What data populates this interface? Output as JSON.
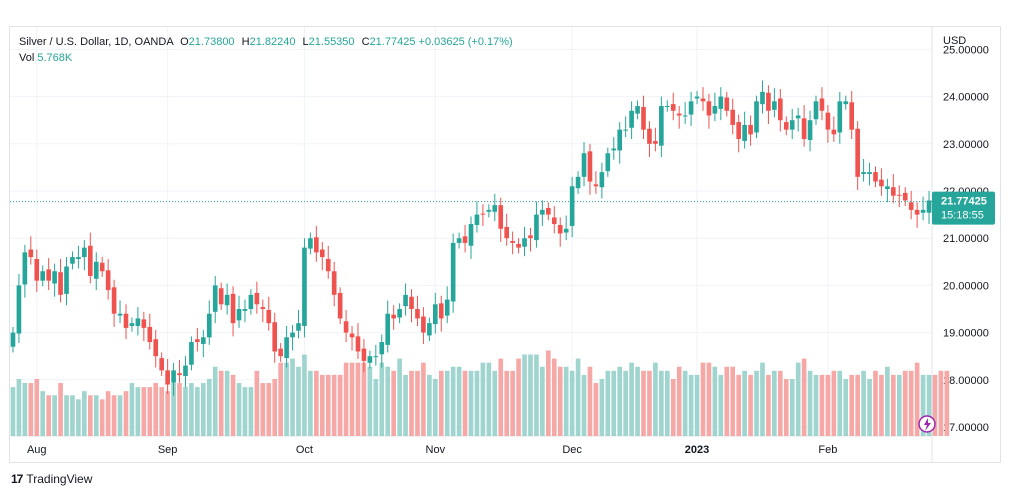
{
  "header": {
    "symbol": "Silver / U.S. Dollar, 1D, OANDA",
    "open_label": "O",
    "open": "21.73800",
    "high_label": "H",
    "high": "21.82240",
    "low_label": "L",
    "low": "21.55350",
    "close_label": "C",
    "close": "21.77425",
    "change": "+0.03625 (+0.17%)",
    "vol_label": "Vol",
    "vol": "5.768K"
  },
  "axis": {
    "currency": "USD",
    "last_price": "21.77425",
    "countdown": "15:18:55"
  },
  "brand": {
    "name": "TradingView",
    "logo_text": "17"
  },
  "colors": {
    "up": "#26a69a",
    "down": "#ef5350",
    "up_vol": "#9fd4cf",
    "down_vol": "#f5a8a6",
    "grid": "#f0f3fa",
    "text": "#131722"
  },
  "chart_data": {
    "type": "candlestick",
    "ylim": [
      16.9,
      25.1
    ],
    "y_ticks": [
      "17.00000",
      "18.00000",
      "19.00000",
      "20.00000",
      "21.00000",
      "22.00000",
      "23.00000",
      "24.00000",
      "25.00000"
    ],
    "x_ticks": [
      {
        "label": "Aug",
        "index": 4
      },
      {
        "label": "Sep",
        "index": 26
      },
      {
        "label": "Oct",
        "index": 49
      },
      {
        "label": "Nov",
        "index": 71
      },
      {
        "label": "Dec",
        "index": 94
      },
      {
        "label": "2023",
        "index": 115
      },
      {
        "label": "Feb",
        "index": 137
      }
    ],
    "closes": [
      19.0,
      20.0,
      20.7,
      20.6,
      20.1,
      20.3,
      20.1,
      20.3,
      19.8,
      20.4,
      20.6,
      20.6,
      20.8,
      20.2,
      20.5,
      20.3,
      19.9,
      19.4,
      19.4,
      19.1,
      19.2,
      19.3,
      19.1,
      18.8,
      18.5,
      18.2,
      17.9,
      18.2,
      18.1,
      18.3,
      18.8,
      18.8,
      18.9,
      19.4,
      20.0,
      19.6,
      19.8,
      19.2,
      19.5,
      19.5,
      19.8,
      19.6,
      19.5,
      19.2,
      18.6,
      18.5,
      18.9,
      19.0,
      19.2,
      20.8,
      21.0,
      20.7,
      20.6,
      20.3,
      19.8,
      19.3,
      19.0,
      18.9,
      18.6,
      18.4,
      18.5,
      18.5,
      18.8,
      19.4,
      19.3,
      19.5,
      19.8,
      19.5,
      19.3,
      19.0,
      19.2,
      19.6,
      19.3,
      19.7,
      20.9,
      21.0,
      20.9,
      21.3,
      21.5,
      21.5,
      21.6,
      21.7,
      21.2,
      21.0,
      20.9,
      20.8,
      21.0,
      21.0,
      21.5,
      21.6,
      21.5,
      21.3,
      21.1,
      21.2,
      22.1,
      22.3,
      22.8,
      22.2,
      22.1,
      22.4,
      22.8,
      22.9,
      23.3,
      23.3,
      23.7,
      23.8,
      23.3,
      23.0,
      23.0,
      23.8,
      23.8,
      23.7,
      23.6,
      23.6,
      23.9,
      24.0,
      23.9,
      23.6,
      23.8,
      24.0,
      23.7,
      23.4,
      23.1,
      23.4,
      23.2,
      23.9,
      24.1,
      23.7,
      23.9,
      23.5,
      23.3,
      23.5,
      23.6,
      23.1,
      23.5,
      23.9,
      23.7,
      23.3,
      23.2,
      23.9,
      23.9,
      23.3,
      22.3,
      22.4,
      22.4,
      22.2,
      22.1,
      22.1,
      21.9,
      21.9,
      21.8,
      21.6,
      21.5,
      21.6,
      21.8
    ],
    "volume_max": 2.7,
    "volumes": [
      1.2,
      1.4,
      1.3,
      1.3,
      1.4,
      1.1,
      1.0,
      1.0,
      1.3,
      1.0,
      1.0,
      0.9,
      1.1,
      1.0,
      1.0,
      0.9,
      1.1,
      1.0,
      1.0,
      1.1,
      1.3,
      1.2,
      1.2,
      1.2,
      1.3,
      1.2,
      1.1,
      1.3,
      1.3,
      1.2,
      1.3,
      1.2,
      1.3,
      1.4,
      1.7,
      1.6,
      1.6,
      1.5,
      1.3,
      1.2,
      1.2,
      1.6,
      1.3,
      1.3,
      1.4,
      1.8,
      1.8,
      1.9,
      1.7,
      2.0,
      1.6,
      1.6,
      1.5,
      1.5,
      1.5,
      1.5,
      1.8,
      1.8,
      1.8,
      1.8,
      1.7,
      1.4,
      1.8,
      1.7,
      1.6,
      1.9,
      1.5,
      1.6,
      1.6,
      1.8,
      1.5,
      1.4,
      1.6,
      1.6,
      1.7,
      1.7,
      1.6,
      1.6,
      1.6,
      1.8,
      1.8,
      1.6,
      1.9,
      1.6,
      1.6,
      1.9,
      2.0,
      2.0,
      2.0,
      1.7,
      2.1,
      1.9,
      1.7,
      1.7,
      1.6,
      1.9,
      1.5,
      1.7,
      1.3,
      1.4,
      1.6,
      1.6,
      1.7,
      1.6,
      1.8,
      1.7,
      1.6,
      1.6,
      1.8,
      1.6,
      1.6,
      1.4,
      1.7,
      1.6,
      1.5,
      1.5,
      1.8,
      1.8,
      1.7,
      1.5,
      1.7,
      1.7,
      1.5,
      1.6,
      1.5,
      1.6,
      1.8,
      1.5,
      1.6,
      1.6,
      1.4,
      1.4,
      1.8,
      1.9,
      1.6,
      1.5,
      1.5,
      1.5,
      1.6,
      1.6,
      1.4,
      1.5,
      1.5,
      1.6,
      1.4,
      1.6,
      1.5,
      1.7,
      1.5,
      1.5,
      1.6,
      1.6,
      1.8,
      1.5,
      1.5,
      1.5,
      1.6,
      1.6
    ]
  }
}
